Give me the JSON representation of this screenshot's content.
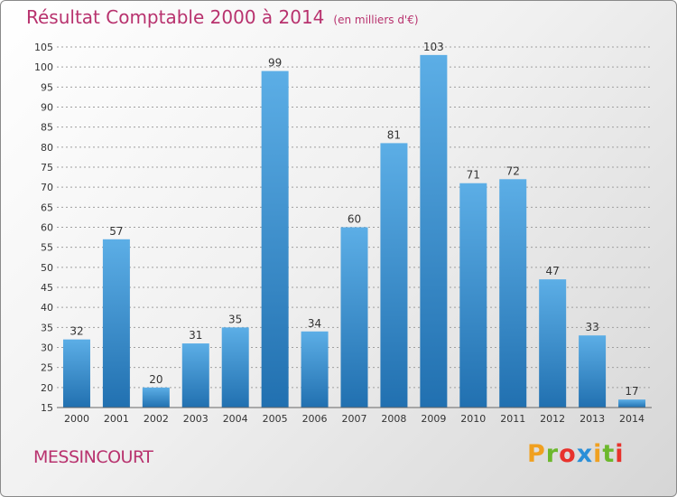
{
  "header": {
    "title": "Résultat Comptable 2000 à 2014",
    "subtitle": "(en milliers d'€)"
  },
  "commune": "MESSINCOURT",
  "logo": {
    "letters": [
      "P",
      "r",
      "o",
      "x",
      "i",
      "t",
      "i"
    ],
    "colors": [
      "#f0a020",
      "#6cb82c",
      "#e8322c",
      "#2a8fd8",
      "#f0a020",
      "#6cb82c",
      "#e8322c"
    ]
  },
  "chart_data": {
    "type": "bar",
    "categories": [
      "2000",
      "2001",
      "2002",
      "2003",
      "2004",
      "2005",
      "2006",
      "2007",
      "2008",
      "2009",
      "2010",
      "2011",
      "2012",
      "2013",
      "2014"
    ],
    "values": [
      32,
      57,
      20,
      31,
      35,
      99,
      34,
      60,
      81,
      103,
      71,
      72,
      47,
      33,
      17
    ],
    "ylim": [
      15,
      105
    ],
    "yticks": [
      15,
      20,
      25,
      30,
      35,
      40,
      45,
      50,
      55,
      60,
      65,
      70,
      75,
      80,
      85,
      90,
      95,
      100,
      105
    ],
    "grid": true,
    "colors": {
      "bar_top": "#5caee6",
      "bar_bottom": "#2170b0",
      "grid": "#a0a0a0",
      "text": "#333333",
      "accent": "#b8326e"
    }
  }
}
